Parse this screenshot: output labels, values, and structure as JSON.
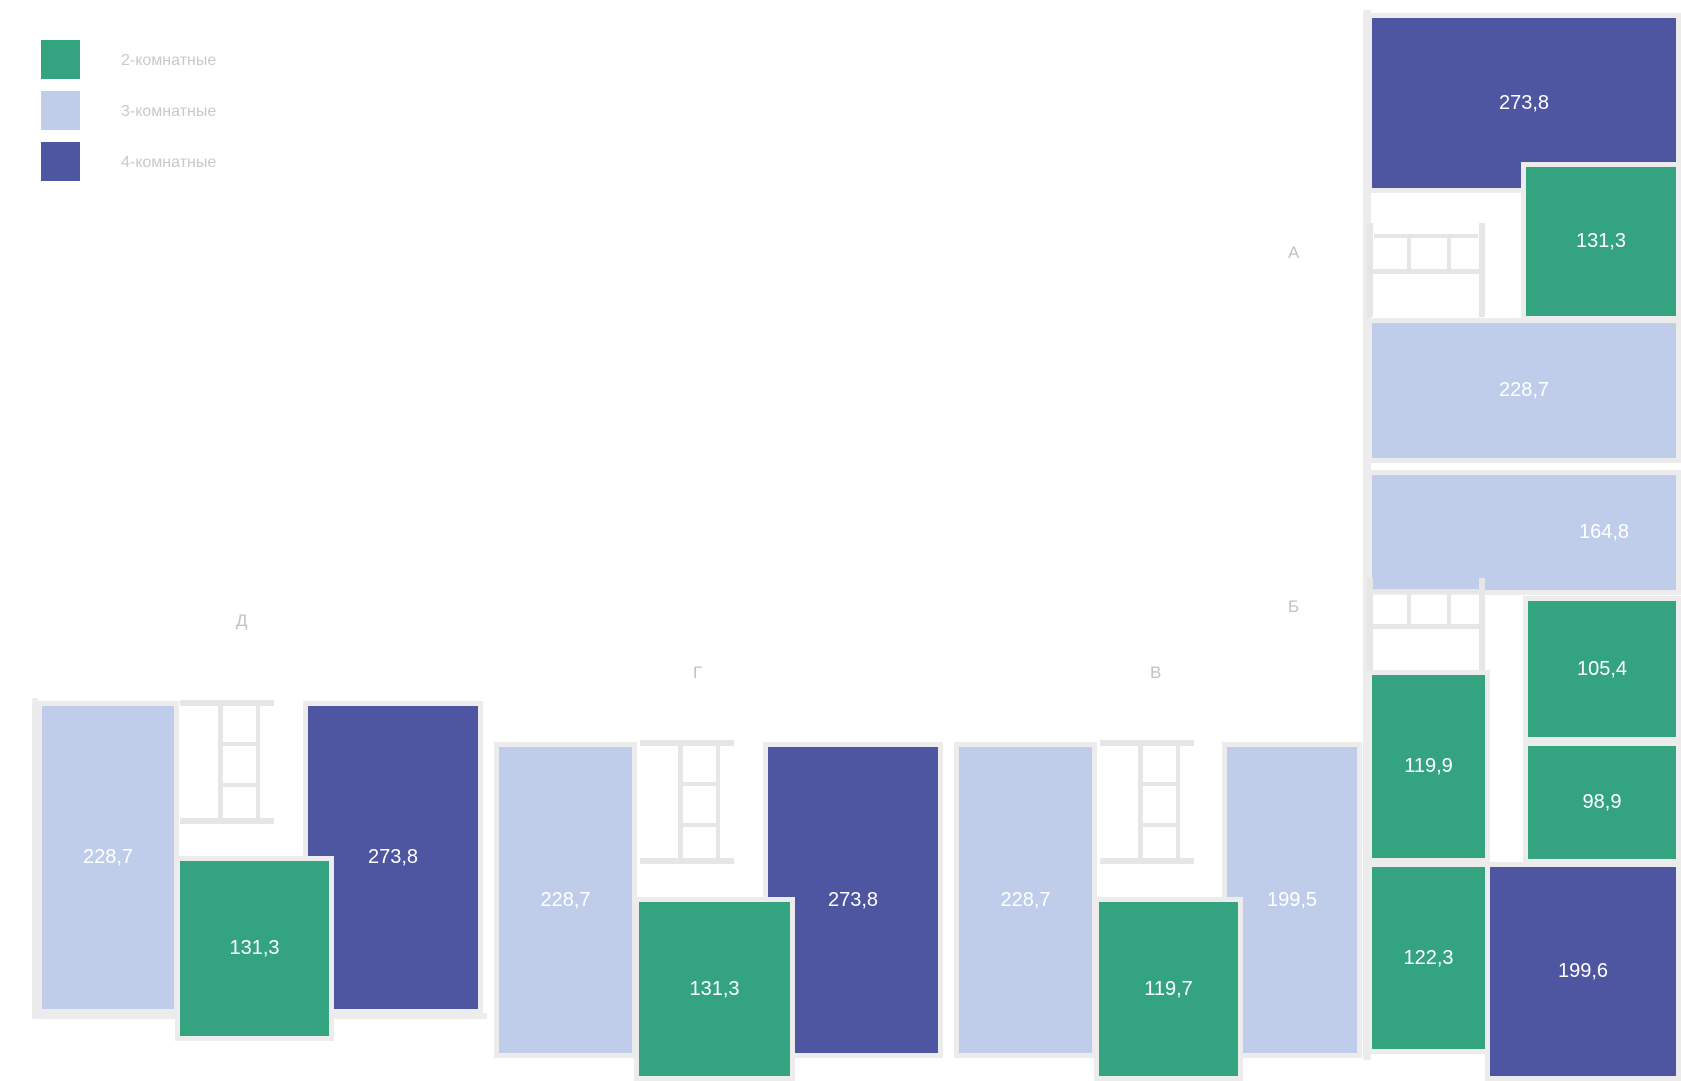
{
  "legend": {
    "two_room": {
      "label": "2-комнатные",
      "color": "#34a480"
    },
    "three_room": {
      "label": "3-комнатные",
      "color": "#bfcdeb"
    },
    "four_room": {
      "label": "4-комнатные",
      "color": "#4e56a2"
    }
  },
  "sections": {
    "a": "А",
    "b": "Б",
    "v": "В",
    "g": "Г",
    "d": "Д"
  },
  "apartments": {
    "d_left": "228,7",
    "d_mid": "131,3",
    "d_right": "273,8",
    "g_left": "228,7",
    "g_mid": "131,3",
    "g_right": "273,8",
    "v_left": "228,7",
    "v_mid": "119,7",
    "v_right": "199,5",
    "a_top": "273,8",
    "a_right": "131,3",
    "a_bottom": "228,7",
    "b_top": "164,8",
    "b_right1": "105,4",
    "b_right2": "98,9",
    "b_left1": "119,9",
    "b_left2": "122,3",
    "b_bottom": "199,6"
  }
}
